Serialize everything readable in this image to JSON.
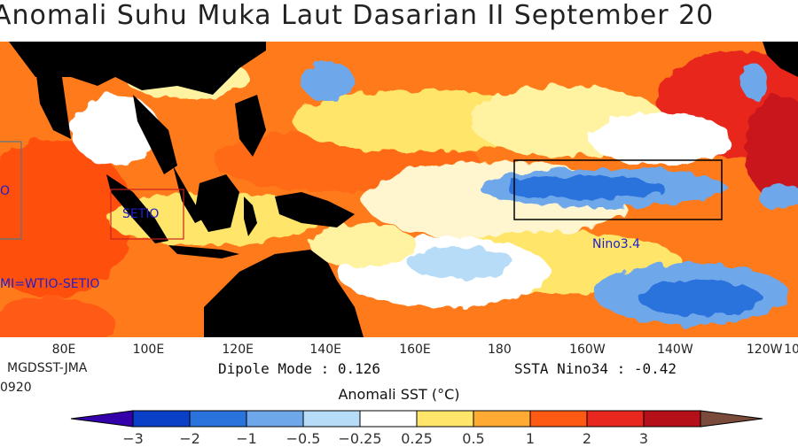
{
  "title": "Anomali Suhu Muka Laut Dasarian II September 20",
  "map": {
    "regions": {
      "wtio_label": "O",
      "setio_label": "SETIO",
      "nino34_label": "Nino3.4",
      "dmi_label": "MI=WTIO-SETIO"
    },
    "lon_labels": [
      {
        "text": "80E",
        "frac": 0.08
      },
      {
        "text": "100E",
        "frac": 0.186
      },
      {
        "text": "120E",
        "frac": 0.298
      },
      {
        "text": "140E",
        "frac": 0.408
      },
      {
        "text": "160E",
        "frac": 0.52
      },
      {
        "text": "180",
        "frac": 0.626
      },
      {
        "text": "160W",
        "frac": 0.736
      },
      {
        "text": "140W",
        "frac": 0.846
      },
      {
        "text": "120W",
        "frac": 0.958
      },
      {
        "text": "10",
        "frac": 1.0
      }
    ]
  },
  "info": {
    "source": "MGDSST-JMA",
    "date": "0920",
    "dipole_mode": "Dipole Mode : 0.126",
    "ssta_nino34": "SSTA Nino34 : -0.42"
  },
  "colorbar": {
    "title": "Anomali SST (°C)",
    "colors": [
      "#3300aa",
      "#0a3fc8",
      "#2a72dc",
      "#6ea7ea",
      "#b6dcf8",
      "#ffffff",
      "#ffe66a",
      "#ffaa33",
      "#ff5a14",
      "#e8281e",
      "#b5101a",
      "#7a4a3a"
    ],
    "labels": [
      "−3",
      "−2",
      "−1",
      "−0.5",
      "−0.25",
      "0.25",
      "0.5",
      "1",
      "2",
      "3"
    ]
  }
}
